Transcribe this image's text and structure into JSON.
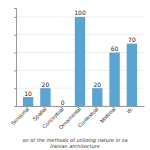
{
  "chart_data": {
    "type": "bar",
    "categories": [
      "Sensorial",
      "Spatial",
      "Conceptual",
      "Ornamental",
      "Contextual",
      "Material",
      "W."
    ],
    "values": [
      10,
      20,
      0,
      100,
      20,
      60,
      70
    ],
    "color": "#5ba3d0",
    "ylim": [
      0,
      110
    ],
    "yticks": [
      0,
      20,
      40,
      60,
      80,
      100
    ],
    "grid": true,
    "data_labels": true,
    "tick_labels": "x",
    "annotations": [
      "on of the methods of utilizing nature in sa",
      "Iranian architecture"
    ]
  }
}
